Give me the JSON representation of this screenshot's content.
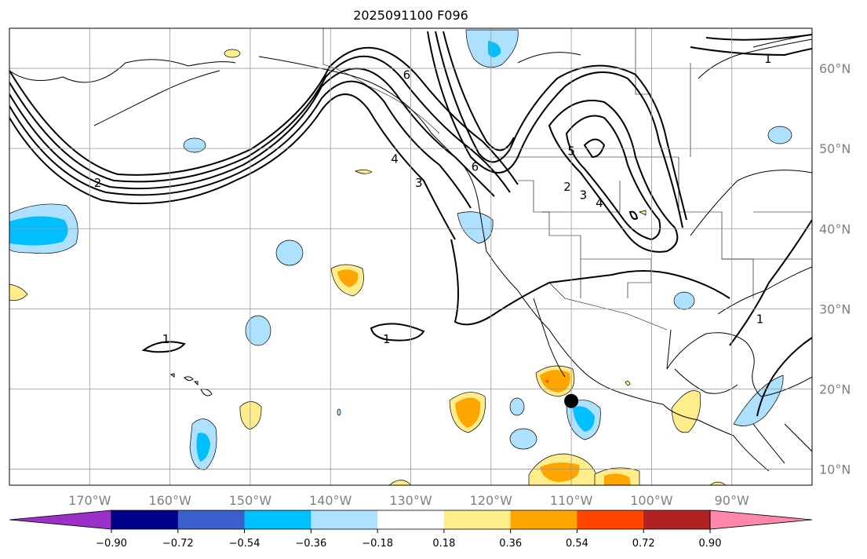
{
  "title": "2025091100 F096",
  "map": {
    "projection": "cylindrical",
    "lon_range": [
      -180,
      -80
    ],
    "lat_range": [
      8,
      65
    ],
    "lon_ticks": [
      {
        "value": -170,
        "label": "170°W"
      },
      {
        "value": -160,
        "label": "160°W"
      },
      {
        "value": -150,
        "label": "150°W"
      },
      {
        "value": -140,
        "label": "140°W"
      },
      {
        "value": -130,
        "label": "130°W"
      },
      {
        "value": -120,
        "label": "120°W"
      },
      {
        "value": -110,
        "label": "110°W"
      },
      {
        "value": -100,
        "label": "100°W"
      },
      {
        "value": -90,
        "label": "90°W"
      }
    ],
    "lat_ticks": [
      {
        "value": 60,
        "label": "60°N"
      },
      {
        "value": 50,
        "label": "50°N"
      },
      {
        "value": 40,
        "label": "40°N"
      },
      {
        "value": 30,
        "label": "30°N"
      },
      {
        "value": 20,
        "label": "20°N"
      },
      {
        "value": 10,
        "label": "10°N"
      }
    ],
    "grid": true,
    "marker": {
      "name": "storm-center",
      "lon": -110,
      "lat": 18.5,
      "color": "#000000"
    }
  },
  "contour_labels": [
    {
      "text": "1",
      "lon": -160.5,
      "lat": 26.0
    },
    {
      "text": "1",
      "lon": -133.0,
      "lat": 26.0
    },
    {
      "text": "1",
      "lon": -85.5,
      "lat": 61.0
    },
    {
      "text": "1",
      "lon": -86.5,
      "lat": 28.5
    },
    {
      "text": "2",
      "lon": -169.0,
      "lat": 45.5
    },
    {
      "text": "2",
      "lon": -110.5,
      "lat": 45.0
    },
    {
      "text": "3",
      "lon": -129.0,
      "lat": 45.5
    },
    {
      "text": "3",
      "lon": -108.5,
      "lat": 44.0
    },
    {
      "text": "4",
      "lon": -132.0,
      "lat": 48.5
    },
    {
      "text": "4",
      "lon": -106.5,
      "lat": 43.0
    },
    {
      "text": "5",
      "lon": -110.0,
      "lat": 49.5
    },
    {
      "text": "6",
      "lon": -130.5,
      "lat": 59.0
    },
    {
      "text": "6",
      "lon": -122.0,
      "lat": 47.5
    }
  ],
  "colorbar": {
    "ticks": [
      "−0.90",
      "−0.72",
      "−0.54",
      "−0.36",
      "−0.18",
      "0.18",
      "0.36",
      "0.54",
      "0.72",
      "0.90"
    ],
    "under_color": "#9b30c8",
    "over_color": "#ff88aa",
    "colors": [
      "#00008b",
      "#3a5fcd",
      "#00bfff",
      "#aee0ff",
      "#ffffff",
      "#ffec8b",
      "#ffa500",
      "#ff4500",
      "#b22222"
    ]
  },
  "shading": {
    "levels": [
      {
        "level": "-0.36..-0.18",
        "color": "#aee0ff"
      },
      {
        "level": "-0.54..-0.36",
        "color": "#00bfff"
      },
      {
        "level": "0.18..0.36",
        "color": "#ffec8b"
      },
      {
        "level": "0.36..0.54",
        "color": "#ffa500"
      },
      {
        "level": "0.54..0.72",
        "color": "#ff4500"
      }
    ]
  }
}
